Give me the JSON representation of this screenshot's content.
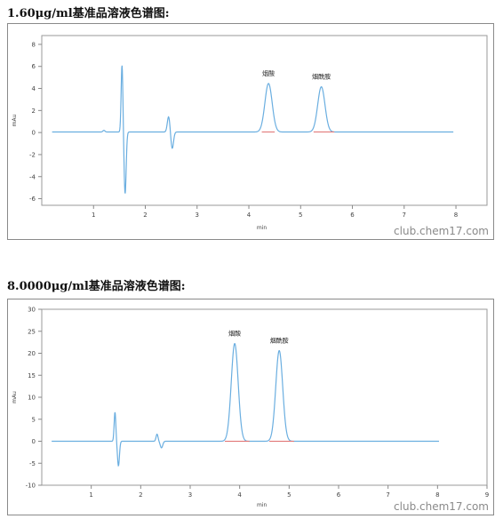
{
  "watermark": "club.chem17.com",
  "chart_data": [
    {
      "type": "line",
      "title": "1.60μg/ml基准品溶液色谱图:",
      "xlabel": "min",
      "ylabel": "mAu",
      "xlim": [
        0,
        8.6
      ],
      "ylim": [
        -6.6,
        8.8
      ],
      "x_ticks": [
        1,
        2,
        3,
        4,
        5,
        6,
        7,
        8
      ],
      "y_ticks": [
        -6,
        -4,
        -2,
        0,
        2,
        4,
        6,
        8
      ],
      "grid": false,
      "line_color": "#6aaee0",
      "baseline_color": "#e07070",
      "baseline": 0.05,
      "disturbances": [
        {
          "x": 1.2,
          "amp": 0.15,
          "w": 0.02
        },
        {
          "x": 1.55,
          "amp": 6.1,
          "w": 0.017
        },
        {
          "x": 1.61,
          "amp": -5.6,
          "w": 0.02
        },
        {
          "x": 2.45,
          "amp": 1.4,
          "w": 0.025
        },
        {
          "x": 2.52,
          "amp": -1.5,
          "w": 0.025
        }
      ],
      "peaks": [
        {
          "label": "烟酸",
          "x": 4.38,
          "height": 4.4,
          "width": 0.07,
          "start": 4.25,
          "end": 4.5
        },
        {
          "label": "烟酰胺",
          "x": 5.4,
          "height": 4.1,
          "width": 0.07,
          "start": 5.25,
          "end": 5.65
        }
      ]
    },
    {
      "type": "line",
      "title": "8.0000μg/ml基准品溶液色谱图:",
      "xlabel": "min",
      "ylabel": "mAu",
      "xlim": [
        0,
        9
      ],
      "ylim": [
        -10,
        30
      ],
      "x_ticks": [
        1,
        2,
        3,
        4,
        5,
        6,
        7,
        8,
        9
      ],
      "y_ticks": [
        -10,
        -5,
        0,
        5,
        10,
        15,
        20,
        25,
        30
      ],
      "grid": false,
      "line_color": "#6aaee0",
      "baseline_color": "#e07070",
      "baseline": 0,
      "disturbances": [
        {
          "x": 1.48,
          "amp": 6.6,
          "w": 0.017
        },
        {
          "x": 1.55,
          "amp": -5.6,
          "w": 0.02
        },
        {
          "x": 2.33,
          "amp": 1.6,
          "w": 0.02
        },
        {
          "x": 2.42,
          "amp": -1.5,
          "w": 0.025
        }
      ],
      "peaks": [
        {
          "label": "烟酸",
          "x": 3.9,
          "height": 22.2,
          "width": 0.07,
          "start": 3.7,
          "end": 4.2
        },
        {
          "label": "烟酰胺",
          "x": 4.8,
          "height": 20.6,
          "width": 0.07,
          "start": 4.6,
          "end": 5.1
        }
      ]
    }
  ]
}
